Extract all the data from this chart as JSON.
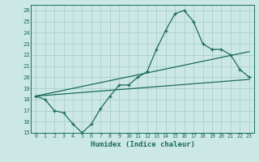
{
  "xlabel": "Humidex (Indice chaleur)",
  "bg_color": "#cce8e4",
  "grid_color": "#aacfcb",
  "line_color": "#1a6b5a",
  "xlim": [
    -0.5,
    23.5
  ],
  "ylim": [
    15,
    26.5
  ],
  "yticks": [
    15,
    16,
    17,
    18,
    19,
    20,
    21,
    22,
    23,
    24,
    25,
    26
  ],
  "xticks": [
    0,
    1,
    2,
    3,
    4,
    5,
    6,
    7,
    8,
    9,
    10,
    11,
    12,
    13,
    14,
    15,
    16,
    17,
    18,
    19,
    20,
    21,
    22,
    23
  ],
  "line1_x": [
    0,
    1,
    2,
    3,
    4,
    5,
    6,
    7,
    8,
    9,
    10,
    11,
    12,
    13,
    14,
    15,
    16,
    17,
    18,
    19,
    20,
    21,
    22,
    23
  ],
  "line1_y": [
    18.3,
    18.0,
    17.0,
    16.8,
    15.8,
    15.0,
    15.8,
    17.2,
    18.3,
    19.3,
    19.3,
    20.0,
    20.5,
    22.5,
    24.2,
    25.7,
    26.0,
    25.0,
    23.0,
    22.5,
    22.5,
    22.0,
    20.7,
    20.0
  ],
  "line2_x": [
    0,
    23
  ],
  "line2_y": [
    18.3,
    22.3
  ],
  "line3_x": [
    0,
    23
  ],
  "line3_y": [
    18.3,
    19.8
  ]
}
